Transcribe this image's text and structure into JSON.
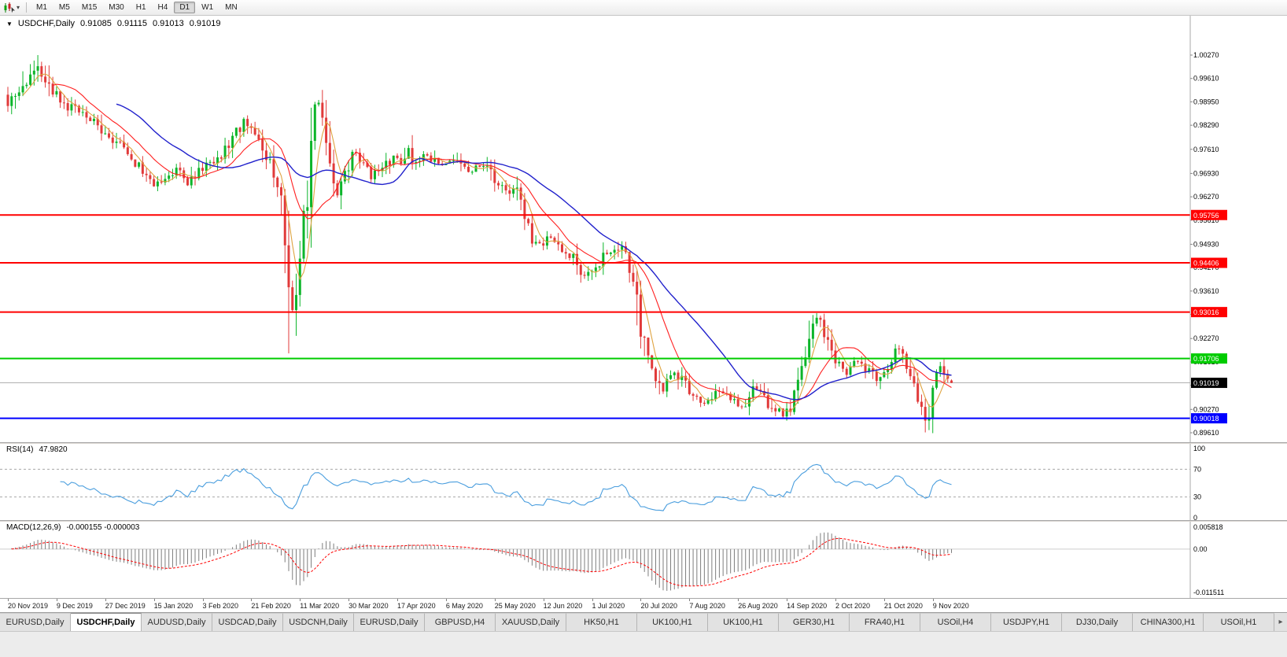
{
  "toolbar": {
    "timeframes": [
      "M1",
      "M5",
      "M15",
      "M30",
      "H1",
      "H4",
      "D1",
      "W1",
      "MN"
    ],
    "active_timeframe": "D1"
  },
  "chart": {
    "header": {
      "dropdown_glyph": "▼",
      "symbol": "USDCHF,Daily",
      "open": "0.91085",
      "high": "0.91115",
      "low": "0.91013",
      "close": "0.91019"
    },
    "colors": {
      "up": "#0cb52a",
      "down": "#e13a3a",
      "ma_fast": "#dfa340",
      "ma_mid": "#ff2020",
      "ma_slow": "#2121cc",
      "rsi_line": "#4a9ede",
      "macd_hist": "#7d7d7d",
      "macd_signal": "#ff0000",
      "current_line": "#b0b0b0",
      "current_bg": "#000000"
    },
    "y_ticks": [
      "1.00270",
      "0.99610",
      "0.98950",
      "0.98290",
      "0.97610",
      "0.96930",
      "0.96270",
      "0.95610",
      "0.94930",
      "0.94270",
      "0.93610",
      "0.92950",
      "0.92270",
      "0.91610",
      "0.90950",
      "0.90270",
      "0.89610"
    ],
    "levels": [
      {
        "price": 0.95756,
        "label": "0.95756",
        "color": "#ff0000"
      },
      {
        "price": 0.94406,
        "label": "0.94406",
        "color": "#ff0000"
      },
      {
        "price": 0.93016,
        "label": "0.93016",
        "color": "#ff0000"
      },
      {
        "price": 0.91706,
        "label": "0.91706",
        "color": "#00cc00"
      },
      {
        "price": 0.90018,
        "label": "0.90018",
        "color": "#0000ff"
      }
    ],
    "current_price": {
      "price": 0.91019,
      "label": "0.91019"
    }
  },
  "rsi": {
    "label": "RSI(14)",
    "value": "47.9820",
    "axis_labels": [
      "100",
      "70",
      "30",
      "0"
    ],
    "upper_level": 70,
    "lower_level": 30
  },
  "macd": {
    "label": "MACD(12,26,9)",
    "value": "-0.000155 -0.000003",
    "axis_max_label": "0.005818",
    "axis_zero_label": "0.00",
    "axis_min_label": "-0.011511",
    "scale_max": 0.005818,
    "scale_min": -0.011511
  },
  "chart_data": {
    "type": "candlestick",
    "symbol": "USDCHF",
    "timeframe": "Daily",
    "bars_total": 253,
    "bars_per_label": 13,
    "y_range": [
      0.8961,
      1.0027
    ],
    "x_labels": [
      "20 Nov 2019",
      "9 Dec 2019",
      "27 Dec 2019",
      "15 Jan 2020",
      "3 Feb 2020",
      "21 Feb 2020",
      "11 Mar 2020",
      "30 Mar 2020",
      "17 Apr 2020",
      "6 May 2020",
      "25 May 2020",
      "12 Jun 2020",
      "1 Jul 2020",
      "20 Jul 2020",
      "7 Aug 2020",
      "26 Aug 2020",
      "14 Sep 2020",
      "2 Oct 2020",
      "21 Oct 2020",
      "9 Nov 2020"
    ],
    "last_bar": {
      "open": 0.91085,
      "high": 0.91115,
      "low": 0.91013,
      "close": 0.91019
    },
    "price_path_anchors": [
      [
        0,
        0.99
      ],
      [
        4,
        0.995
      ],
      [
        8,
        0.999
      ],
      [
        10,
        0.997
      ],
      [
        13,
        0.9905
      ],
      [
        17,
        0.9875
      ],
      [
        20,
        0.986
      ],
      [
        23,
        0.9838
      ],
      [
        26,
        0.9802
      ],
      [
        29,
        0.9778
      ],
      [
        32,
        0.9748
      ],
      [
        36,
        0.9692
      ],
      [
        39,
        0.9656
      ],
      [
        42,
        0.9678
      ],
      [
        45,
        0.97
      ],
      [
        48,
        0.9662
      ],
      [
        50,
        0.969
      ],
      [
        53,
        0.9716
      ],
      [
        57,
        0.9744
      ],
      [
        60,
        0.9788
      ],
      [
        63,
        0.9845
      ],
      [
        65,
        0.9832
      ],
      [
        67,
        0.9792
      ],
      [
        69,
        0.9742
      ],
      [
        71,
        0.97
      ],
      [
        73,
        0.9606
      ],
      [
        75,
        0.943
      ],
      [
        76,
        0.9305
      ],
      [
        78,
        0.9498
      ],
      [
        80,
        0.9615
      ],
      [
        82,
        0.9868
      ],
      [
        83,
        0.9888
      ],
      [
        85,
        0.98
      ],
      [
        87,
        0.9662
      ],
      [
        88,
        0.9632
      ],
      [
        90,
        0.969
      ],
      [
        93,
        0.9758
      ],
      [
        95,
        0.9722
      ],
      [
        97,
        0.9686
      ],
      [
        100,
        0.9706
      ],
      [
        103,
        0.9738
      ],
      [
        105,
        0.9716
      ],
      [
        107,
        0.9768
      ],
      [
        109,
        0.9722
      ],
      [
        112,
        0.975
      ],
      [
        115,
        0.9712
      ],
      [
        118,
        0.973
      ],
      [
        121,
        0.9712
      ],
      [
        124,
        0.9696
      ],
      [
        127,
        0.972
      ],
      [
        130,
        0.9672
      ],
      [
        133,
        0.9642
      ],
      [
        136,
        0.9656
      ],
      [
        138,
        0.9562
      ],
      [
        140,
        0.9512
      ],
      [
        142,
        0.9496
      ],
      [
        145,
        0.9516
      ],
      [
        148,
        0.9472
      ],
      [
        151,
        0.9452
      ],
      [
        154,
        0.9406
      ],
      [
        157,
        0.9432
      ],
      [
        160,
        0.947
      ],
      [
        163,
        0.949
      ],
      [
        165,
        0.9456
      ],
      [
        167,
        0.9406
      ],
      [
        169,
        0.9252
      ],
      [
        171,
        0.9162
      ],
      [
        173,
        0.9122
      ],
      [
        175,
        0.9086
      ],
      [
        177,
        0.9112
      ],
      [
        178,
        0.914
      ],
      [
        180,
        0.9112
      ],
      [
        182,
        0.9082
      ],
      [
        184,
        0.9062
      ],
      [
        186,
        0.9046
      ],
      [
        188,
        0.9062
      ],
      [
        190,
        0.9076
      ],
      [
        192,
        0.906
      ],
      [
        194,
        0.9046
      ],
      [
        196,
        0.9032
      ],
      [
        198,
        0.906
      ],
      [
        199,
        0.9096
      ],
      [
        201,
        0.9076
      ],
      [
        203,
        0.9042
      ],
      [
        205,
        0.9026
      ],
      [
        207,
        0.9014
      ],
      [
        209,
        0.904
      ],
      [
        211,
        0.9096
      ],
      [
        213,
        0.916
      ],
      [
        215,
        0.9242
      ],
      [
        216,
        0.9286
      ],
      [
        218,
        0.9236
      ],
      [
        220,
        0.9182
      ],
      [
        222,
        0.9146
      ],
      [
        224,
        0.9132
      ],
      [
        226,
        0.9162
      ],
      [
        228,
        0.9152
      ],
      [
        230,
        0.9132
      ],
      [
        232,
        0.9116
      ],
      [
        234,
        0.914
      ],
      [
        236,
        0.9152
      ],
      [
        238,
        0.9206
      ],
      [
        240,
        0.9156
      ],
      [
        242,
        0.9082
      ],
      [
        244,
        0.9012
      ],
      [
        245,
        0.8992
      ],
      [
        247,
        0.9062
      ],
      [
        249,
        0.9142
      ],
      [
        251,
        0.9106
      ],
      [
        252,
        0.9102
      ]
    ],
    "spike_overrides": [
      {
        "bar": 8,
        "high": 1.0027
      },
      {
        "bar": 75,
        "low": 0.9185
      },
      {
        "bar": 82,
        "high": 0.9895
      },
      {
        "bar": 245,
        "low": 0.8962
      }
    ],
    "moving_averages": [
      {
        "period": 5
      },
      {
        "period": 13
      },
      {
        "period": 30
      }
    ],
    "indicators": [
      {
        "name": "RSI",
        "period": 14,
        "current": 47.982
      },
      {
        "name": "MACD",
        "fast": 12,
        "slow": 26,
        "signal": 9,
        "main": -0.000155,
        "signal_value": -3e-06
      }
    ]
  },
  "tabs": {
    "items": [
      "EURUSD,Daily",
      "USDCHF,Daily",
      "AUDUSD,Daily",
      "USDCAD,Daily",
      "USDCNH,Daily",
      "EURUSD,Daily",
      "GBPUSD,H4",
      "XAUUSD,Daily",
      "HK50,H1",
      "UK100,H1",
      "UK100,H1",
      "GER30,H1",
      "FRA40,H1",
      "USOil,H4",
      "USDJPY,H1",
      "DJ30,Daily",
      "CHINA300,H1",
      "USOil,H1"
    ],
    "active_index": 1,
    "scroll_right_glyph": "▸"
  }
}
